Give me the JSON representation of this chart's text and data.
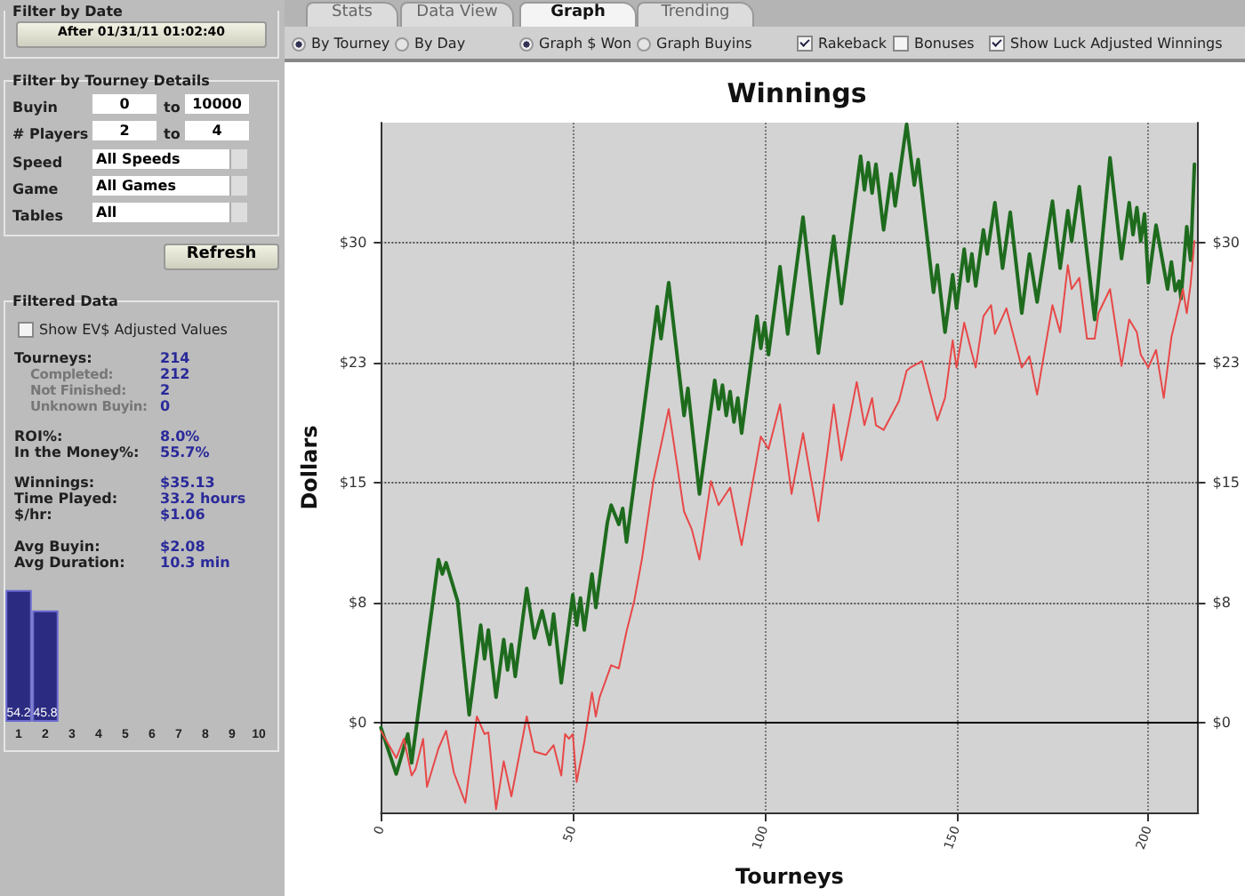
{
  "chart_data": [
    {
      "type": "other",
      "annotations": [
        "Filter by Date",
        "After 01/31/11 01:02:40",
        "Filter by Tourney Details",
        "Buyin",
        "0",
        "to",
        "10000",
        "# Players",
        "2",
        "to",
        "4",
        "Speed",
        "All Speeds",
        "Game",
        "All Games",
        "Tables",
        "All",
        "Refresh",
        "Filtered Data",
        "Show EV$ Adjusted Values",
        "Tourneys:",
        "214",
        "Completed:",
        "212",
        "Not Finished:",
        "2",
        "Unknown Buyin:",
        "0",
        "ROI%:",
        "8.0%",
        "In the Money%:",
        "55.7%",
        "Winnings:",
        "$35.13",
        "Time Played:",
        "33.2 hours",
        "$/hr:",
        "$1.06",
        "Avg Buyin:",
        "$2.08",
        "Avg Duration:",
        "10.3 min",
        "Stats",
        "Data View",
        "Graph",
        "Trending",
        "By Tourney",
        "By Day",
        "Graph $ Won",
        "Graph Buyins",
        "Rakeback",
        "Bonuses",
        "Show Luck Adjusted Winnings"
      ]
    },
    {
      "type": "bar",
      "categories": [
        "1",
        "2",
        "3",
        "4",
        "5",
        "6",
        "7",
        "8",
        "9",
        "10"
      ],
      "values": [
        54.2,
        45.8,
        null,
        null,
        null,
        null,
        null,
        null,
        null,
        null
      ],
      "color": "#2b2b82",
      "data_labels": true
    },
    {
      "type": "line",
      "title": "Winnings",
      "xlabel": "Tourneys",
      "ylabel": "Dollars",
      "xlim": [
        0,
        213
      ],
      "xticks": [
        0,
        50,
        100,
        150,
        200
      ],
      "ylim": [
        -5.6,
        37.5
      ],
      "yticks": [
        {
          "value": 0,
          "label": "$0"
        },
        {
          "value": 7.5,
          "label": "$8"
        },
        {
          "value": 15,
          "label": "$15"
        },
        {
          "value": 22.5,
          "label": "$23"
        },
        {
          "value": 30,
          "label": "$30"
        }
      ],
      "y2lim": [
        -5.6,
        37.5
      ],
      "y2ticks": [
        {
          "value": 0,
          "label": "$0"
        },
        {
          "value": 7.5,
          "label": "$8"
        },
        {
          "value": 15,
          "label": "$15"
        },
        {
          "value": 22.5,
          "label": "$23"
        },
        {
          "value": 30,
          "label": "$30"
        }
      ],
      "grid": true,
      "marker": "none",
      "line_style": "solid",
      "ref_lines": [
        {
          "axis": "y",
          "value": 0,
          "color": "#000000"
        }
      ],
      "series": [
        {
          "color": "#1e6b1e",
          "x": [
            0,
            4,
            7,
            8,
            15,
            16,
            17,
            20,
            23,
            26,
            27,
            28,
            30,
            32,
            33,
            34,
            35,
            38,
            40,
            42,
            44,
            45,
            47,
            50,
            51,
            52,
            53,
            55,
            56,
            59,
            60,
            62,
            63,
            64,
            67.5,
            72,
            73,
            75,
            79,
            80,
            83,
            87,
            88,
            89,
            90,
            91,
            92,
            93,
            94,
            98,
            99,
            100,
            101,
            104,
            106,
            110,
            114,
            118,
            120,
            125,
            126,
            127,
            128,
            129,
            131,
            133,
            134,
            137,
            139,
            140,
            144,
            145,
            147,
            149,
            150,
            152,
            153,
            154,
            155,
            157,
            158,
            160,
            162,
            164,
            167,
            169,
            171,
            175,
            177,
            179,
            180,
            182,
            186,
            190,
            193,
            195,
            196,
            197,
            198,
            199,
            200,
            202,
            205,
            206,
            207,
            208,
            208.5,
            210,
            211,
            212
          ],
          "values": [
            -0.3,
            -3.2,
            -0.7,
            -2.5,
            10.2,
            9.3,
            10,
            7.6,
            0.5,
            6.1,
            4.0,
            5.8,
            1.6,
            5.2,
            3.3,
            4.9,
            2.9,
            8.4,
            5.3,
            7.0,
            4.9,
            6.8,
            2.5,
            8.0,
            6.1,
            7.8,
            5.8,
            9.3,
            7.2,
            12.5,
            13.6,
            12.4,
            13.4,
            11.3,
            17.7,
            26.0,
            24.0,
            27.5,
            19.2,
            20.9,
            14.3,
            21.4,
            19.6,
            21.1,
            19.2,
            20.7,
            18.8,
            20.3,
            18.1,
            25.4,
            23.4,
            25.0,
            23.0,
            28.5,
            24.3,
            31.6,
            23.1,
            30.4,
            26.2,
            35.4,
            33.3,
            35.0,
            33.1,
            34.9,
            30.8,
            34.3,
            32.3,
            37.4,
            33.6,
            35.2,
            26.9,
            28.6,
            24.4,
            28.0,
            25.9,
            29.6,
            27.6,
            29.3,
            27.3,
            30.8,
            29.3,
            32.5,
            28.4,
            31.9,
            25.6,
            29.3,
            26.3,
            32.6,
            28.4,
            32.0,
            30.1,
            33.5,
            25.2,
            35.3,
            29.0,
            32.5,
            30.5,
            32.2,
            30.1,
            31.8,
            27.5,
            31.1,
            27.1,
            28.8,
            27.0,
            27.6,
            26.5,
            31.0,
            28.9,
            34.9
          ]
        },
        {
          "color": "#e84848",
          "x": [
            0,
            4,
            6,
            8,
            9,
            11,
            12,
            15,
            17,
            19,
            22,
            25,
            27,
            28,
            30,
            32,
            34,
            38,
            40,
            43,
            45,
            47,
            48,
            49,
            50,
            51,
            53,
            55,
            56,
            57,
            60,
            62,
            64,
            66,
            68,
            71,
            75,
            79,
            81,
            83,
            86,
            88,
            91,
            94,
            99,
            101,
            104,
            107,
            110,
            114,
            118,
            120,
            124,
            126,
            128,
            129,
            131,
            135,
            137,
            138,
            141,
            145,
            147,
            149,
            150,
            152,
            154,
            155,
            157,
            159,
            160,
            163,
            167,
            169,
            171,
            175,
            177,
            179,
            180,
            182,
            184,
            186,
            187,
            190,
            193,
            195,
            197,
            198,
            200,
            202,
            204,
            206,
            209,
            210,
            211,
            212
          ],
          "values": [
            -0.5,
            -2.2,
            -1.0,
            -3.3,
            -2.9,
            -1.0,
            -4.0,
            -1.6,
            -0.5,
            -3.1,
            -5.0,
            0.4,
            -0.7,
            -0.6,
            -5.4,
            -2.4,
            -4.6,
            0.4,
            -1.8,
            -2.0,
            -1.4,
            -3.3,
            -0.7,
            -1.0,
            -0.7,
            -3.7,
            -1.2,
            1.9,
            0.4,
            1.6,
            3.6,
            3.4,
            5.7,
            7.6,
            10.2,
            15.1,
            19.6,
            13.2,
            12.1,
            10.2,
            15.1,
            13.6,
            14.7,
            11.1,
            17.9,
            17.1,
            19.9,
            14.3,
            18.1,
            12.6,
            19.9,
            16.4,
            21.3,
            18.6,
            20.3,
            18.6,
            18.3,
            20.1,
            22.0,
            22.2,
            22.6,
            18.9,
            20.3,
            23.9,
            22.2,
            25.0,
            23.1,
            22.2,
            25.4,
            26.1,
            24.3,
            25.9,
            22.2,
            22.9,
            20.5,
            26.1,
            24.4,
            28.6,
            27.1,
            27.8,
            24.0,
            24.0,
            25.6,
            27.1,
            22.3,
            25.2,
            24.4,
            23.0,
            22.2,
            23.3,
            20.3,
            24.1,
            27.1,
            25.6,
            27.4,
            30.1
          ]
        }
      ]
    }
  ]
}
